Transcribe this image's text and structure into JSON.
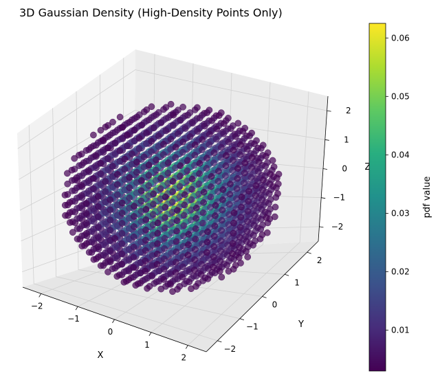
{
  "chart_data": {
    "type": "scatter",
    "title": "3D Gaussian Density (High-Density Points Only)",
    "xlabel": "X",
    "ylabel": "Y",
    "zlabel": "Z",
    "xticks": [
      "−2",
      "−1",
      "0",
      "1",
      "2"
    ],
    "yticks": [
      "−2",
      "−1",
      "0",
      "1",
      "2"
    ],
    "zticks": [
      "−2",
      "−1",
      "0",
      "1",
      "2"
    ],
    "xlim": [
      -2.5,
      2.5
    ],
    "ylim": [
      -2.5,
      2.5
    ],
    "zlim": [
      -2.5,
      2.5
    ],
    "grid": true,
    "distribution": {
      "kind": "standard normal pdf, 3 dimensions, sampled on a regular grid",
      "grid_min": -2.5,
      "grid_max": 2.5,
      "grid_count": 17,
      "radius_cutoff": 2.5
    },
    "colorbar": {
      "label": "pdf value",
      "colormap": "viridis",
      "min": 0.003,
      "max": 0.0625,
      "ticks": [
        "0.01",
        "0.02",
        "0.03",
        "0.04",
        "0.05",
        "0.06"
      ],
      "tick_values": [
        0.01,
        0.02,
        0.03,
        0.04,
        0.05,
        0.06
      ]
    },
    "point_alpha": 0.7
  }
}
